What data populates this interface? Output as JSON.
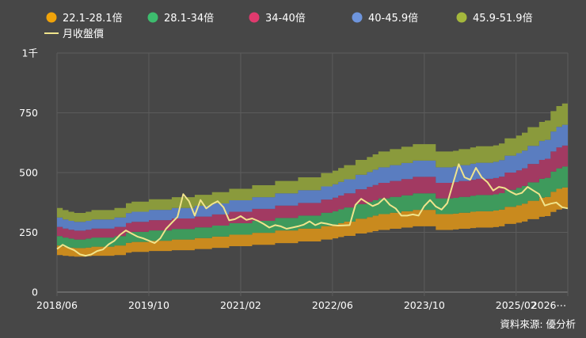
{
  "chart_data": {
    "type": "area",
    "title": "",
    "source": "資料來源: 優分析",
    "y_ticks": [
      {
        "value": 0,
        "label": "0"
      },
      {
        "value": 250,
        "label": "250"
      },
      {
        "value": 500,
        "label": "500"
      },
      {
        "value": 750,
        "label": "750"
      },
      {
        "value": 1000,
        "label": "1千"
      }
    ],
    "ylim": [
      0,
      1000
    ],
    "x_ticks": [
      "2018/06",
      "2019/10",
      "2021/02",
      "2022/06",
      "2023/10",
      "2025/02",
      "2026⋯"
    ],
    "n_points": 90,
    "legend": [
      {
        "label": "22.1-28.1倍",
        "color": "#f0a30a"
      },
      {
        "label": "28.1-34倍",
        "color": "#3dbc6e"
      },
      {
        "label": "34-40倍",
        "color": "#e03a6e"
      },
      {
        "label": "40-45.9倍",
        "color": "#6e95dd"
      },
      {
        "label": "45.9-51.9倍",
        "color": "#a5b83c"
      },
      {
        "label": "月收盤價",
        "color": "#f0e48c"
      }
    ],
    "band_colors": [
      "#c98a1e",
      "#3e9a5c",
      "#a23a62",
      "#5a7dc0",
      "#8a9a3c"
    ],
    "band_bounds": [
      [
        155,
        152,
        150,
        148,
        148,
        150,
        152,
        152,
        152,
        152,
        155,
        155,
        165,
        168,
        168,
        168,
        172,
        172,
        172,
        172,
        175,
        175,
        175,
        175,
        180,
        180,
        180,
        185,
        185,
        185,
        192,
        192,
        192,
        192,
        198,
        198,
        198,
        198,
        205,
        205,
        205,
        205,
        212,
        212,
        212,
        212,
        220,
        220,
        225,
        230,
        235,
        235,
        245,
        245,
        250,
        255,
        260,
        260,
        265,
        265,
        270,
        270,
        275,
        275,
        275,
        275,
        260,
        260,
        260,
        262,
        265,
        265,
        268,
        270,
        270,
        270,
        272,
        275,
        285,
        285,
        290,
        295,
        305,
        305,
        315,
        318,
        335,
        345,
        350,
        355
      ],
      [
        195,
        190,
        186,
        184,
        184,
        186,
        190,
        190,
        190,
        190,
        195,
        195,
        206,
        210,
        210,
        210,
        215,
        215,
        215,
        215,
        220,
        220,
        220,
        220,
        226,
        226,
        226,
        232,
        232,
        232,
        240,
        240,
        240,
        240,
        248,
        248,
        248,
        248,
        258,
        258,
        258,
        258,
        266,
        266,
        266,
        266,
        276,
        276,
        282,
        288,
        295,
        295,
        307,
        307,
        314,
        320,
        326,
        326,
        332,
        332,
        338,
        338,
        344,
        344,
        344,
        344,
        326,
        326,
        326,
        328,
        332,
        332,
        336,
        338,
        338,
        338,
        341,
        345,
        357,
        357,
        363,
        370,
        382,
        382,
        395,
        398,
        420,
        432,
        438,
        445
      ],
      [
        234,
        228,
        224,
        220,
        220,
        224,
        228,
        228,
        228,
        228,
        234,
        234,
        247,
        252,
        252,
        252,
        258,
        258,
        258,
        258,
        264,
        264,
        264,
        264,
        271,
        271,
        271,
        278,
        278,
        278,
        288,
        288,
        288,
        288,
        298,
        298,
        298,
        298,
        310,
        310,
        310,
        310,
        320,
        320,
        320,
        320,
        332,
        332,
        338,
        346,
        354,
        354,
        368,
        368,
        377,
        384,
        392,
        392,
        398,
        398,
        405,
        405,
        413,
        413,
        413,
        413,
        392,
        392,
        392,
        394,
        398,
        398,
        403,
        406,
        406,
        406,
        409,
        414,
        428,
        428,
        436,
        444,
        459,
        459,
        474,
        478,
        504,
        518,
        525,
        534
      ],
      [
        273,
        266,
        261,
        257,
        257,
        261,
        266,
        266,
        266,
        266,
        273,
        273,
        289,
        294,
        294,
        294,
        301,
        301,
        301,
        301,
        308,
        308,
        308,
        308,
        316,
        316,
        316,
        325,
        325,
        325,
        336,
        336,
        336,
        336,
        348,
        348,
        348,
        348,
        362,
        362,
        362,
        362,
        373,
        373,
        373,
        373,
        387,
        387,
        395,
        404,
        413,
        413,
        430,
        430,
        440,
        448,
        457,
        457,
        465,
        465,
        473,
        473,
        482,
        482,
        482,
        482,
        457,
        457,
        457,
        460,
        465,
        465,
        470,
        474,
        474,
        474,
        477,
        483,
        500,
        500,
        509,
        518,
        536,
        536,
        553,
        558,
        588,
        605,
        613,
        624
      ],
      [
        312,
        304,
        298,
        294,
        294,
        298,
        304,
        304,
        304,
        304,
        312,
        312,
        330,
        336,
        336,
        336,
        344,
        344,
        344,
        344,
        352,
        352,
        352,
        352,
        361,
        361,
        361,
        371,
        371,
        371,
        384,
        384,
        384,
        384,
        397,
        397,
        397,
        397,
        413,
        413,
        413,
        413,
        426,
        426,
        426,
        426,
        442,
        442,
        451,
        461,
        472,
        472,
        491,
        491,
        502,
        512,
        522,
        522,
        531,
        531,
        540,
        540,
        550,
        550,
        550,
        550,
        522,
        522,
        522,
        525,
        531,
        531,
        537,
        541,
        541,
        541,
        545,
        552,
        571,
        571,
        581,
        592,
        612,
        612,
        632,
        637,
        672,
        691,
        700,
        713
      ],
      [
        352,
        343,
        336,
        331,
        331,
        336,
        343,
        343,
        343,
        343,
        352,
        352,
        372,
        378,
        378,
        378,
        388,
        388,
        388,
        388,
        397,
        397,
        397,
        397,
        407,
        407,
        407,
        418,
        418,
        418,
        432,
        432,
        432,
        432,
        447,
        447,
        447,
        447,
        465,
        465,
        465,
        465,
        480,
        480,
        480,
        480,
        498,
        498,
        508,
        519,
        531,
        531,
        553,
        553,
        565,
        576,
        588,
        588,
        598,
        598,
        608,
        608,
        619,
        619,
        619,
        619,
        588,
        588,
        588,
        591,
        598,
        598,
        605,
        610,
        610,
        610,
        614,
        622,
        643,
        643,
        655,
        667,
        690,
        690,
        712,
        718,
        757,
        778,
        789,
        803
      ]
    ],
    "price": [
      180,
      198,
      185,
      175,
      158,
      152,
      158,
      172,
      178,
      200,
      215,
      240,
      258,
      245,
      232,
      225,
      215,
      205,
      225,
      265,
      290,
      315,
      410,
      380,
      320,
      385,
      350,
      368,
      380,
      355,
      300,
      305,
      318,
      302,
      308,
      298,
      285,
      270,
      280,
      275,
      265,
      270,
      275,
      282,
      296,
      280,
      290,
      286,
      280,
      278,
      279,
      280,
      365,
      390,
      375,
      360,
      370,
      392,
      365,
      350,
      320,
      320,
      325,
      320,
      360,
      385,
      358,
      345,
      372,
      455,
      535,
      480,
      470,
      520,
      480,
      460,
      425,
      440,
      435,
      420,
      408,
      415,
      440,
      425,
      410,
      362,
      370,
      375,
      355,
      350
    ]
  }
}
